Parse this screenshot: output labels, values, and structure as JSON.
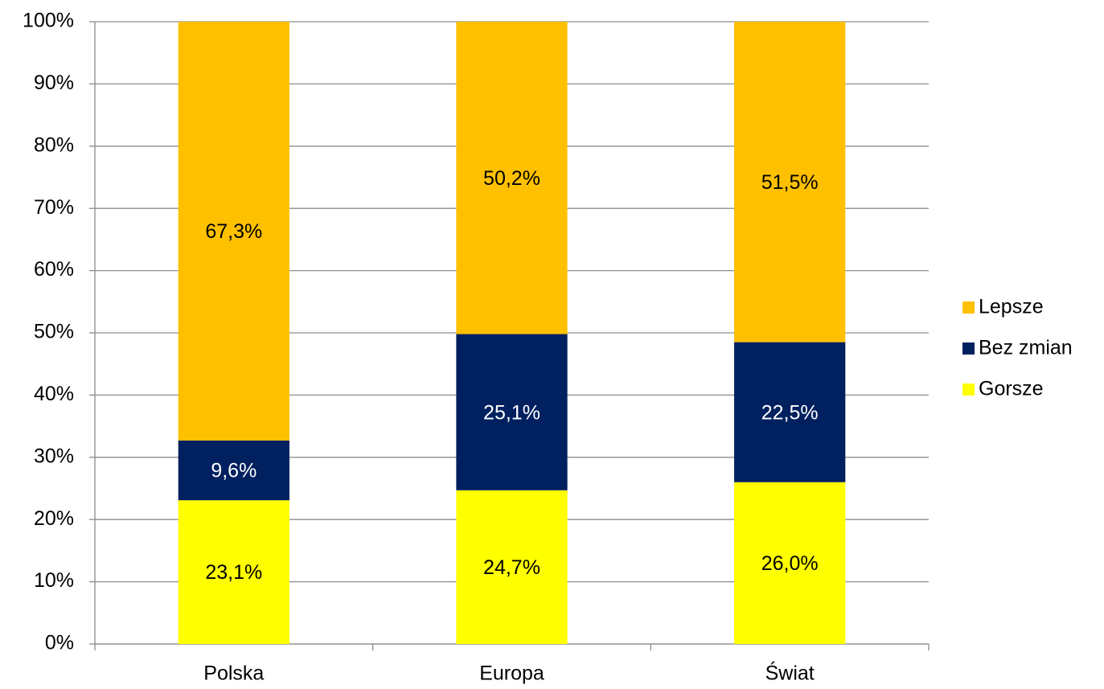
{
  "chart_data": {
    "type": "stacked_bar",
    "categories": [
      "Polska",
      "Europa",
      "Świat"
    ],
    "series": [
      {
        "name": "Gorsze",
        "color": "#ffff00",
        "values": [
          23.1,
          24.7,
          26.0
        ],
        "value_labels": [
          "23,1%",
          "24,7%",
          "26,0%"
        ]
      },
      {
        "name": "Bez zmian",
        "color": "#002060",
        "values": [
          9.6,
          25.1,
          22.5
        ],
        "value_labels": [
          "9,6%",
          "25,1%",
          "22,5%"
        ]
      },
      {
        "name": "Lepsze",
        "color": "#ffc000",
        "values": [
          67.3,
          50.2,
          51.5
        ],
        "value_labels": [
          "67,3%",
          "50,2%",
          "51,5%"
        ]
      }
    ],
    "ylim": [
      0,
      100
    ],
    "yticks": [
      {
        "value": 0,
        "label": "0%"
      },
      {
        "value": 10,
        "label": "10%"
      },
      {
        "value": 20,
        "label": "20%"
      },
      {
        "value": 30,
        "label": "30%"
      },
      {
        "value": 40,
        "label": "40%"
      },
      {
        "value": 50,
        "label": "50%"
      },
      {
        "value": 60,
        "label": "60%"
      },
      {
        "value": 70,
        "label": "70%"
      },
      {
        "value": 80,
        "label": "80%"
      },
      {
        "value": 90,
        "label": "90%"
      },
      {
        "value": 100,
        "label": "100%"
      }
    ],
    "grid": true,
    "legend": "right"
  }
}
